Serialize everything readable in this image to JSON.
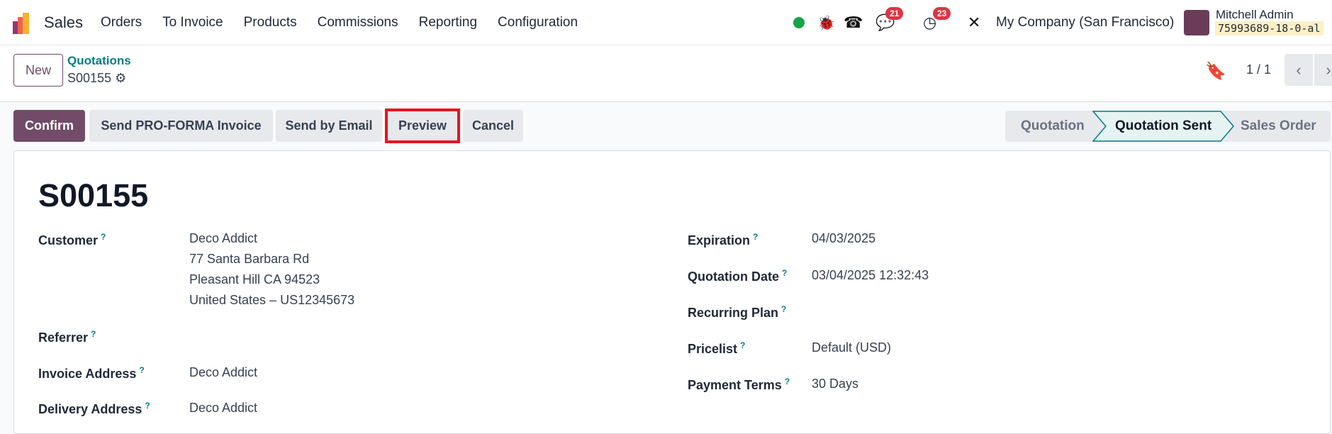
{
  "nav": {
    "app": "Sales",
    "menu": [
      "Orders",
      "To Invoice",
      "Products",
      "Commissions",
      "Reporting",
      "Configuration"
    ],
    "chat_count": "21",
    "activity_count": "23",
    "company": "My Company (San Francisco)",
    "user": "Mitchell Admin",
    "db": "75993689-18-0-al"
  },
  "control": {
    "new": "New",
    "breadcrumb": "Quotations",
    "record": "S00155",
    "pager": "1 / 1"
  },
  "actions": {
    "confirm": "Confirm",
    "proforma": "Send PRO-FORMA Invoice",
    "email": "Send by Email",
    "preview": "Preview",
    "cancel": "Cancel"
  },
  "status": {
    "steps": [
      "Quotation",
      "Quotation Sent",
      "Sales Order"
    ],
    "current": "Quotation Sent"
  },
  "form": {
    "title": "S00155",
    "left": [
      {
        "label": "Customer",
        "value": [
          "Deco Addict",
          "77 Santa Barbara Rd",
          "Pleasant Hill CA 94523",
          "United States – US12345673"
        ]
      },
      {
        "label": "Referrer",
        "value": []
      },
      {
        "label": "Invoice Address",
        "value": [
          "Deco Addict"
        ]
      },
      {
        "label": "Delivery Address",
        "value": [
          "Deco Addict"
        ]
      }
    ],
    "right": [
      {
        "label": "Expiration",
        "value": "04/03/2025"
      },
      {
        "label": "Quotation Date",
        "value": "03/04/2025 12:32:43"
      },
      {
        "label": "Recurring Plan",
        "value": ""
      },
      {
        "label": "Pricelist",
        "value": "Default (USD)"
      },
      {
        "label": "Payment Terms",
        "value": "30 Days"
      }
    ],
    "help": "?"
  },
  "colors": {
    "primary": "#714B67",
    "link": "#017e84",
    "highlight": "#e8141c",
    "badge": "#dc3545"
  }
}
